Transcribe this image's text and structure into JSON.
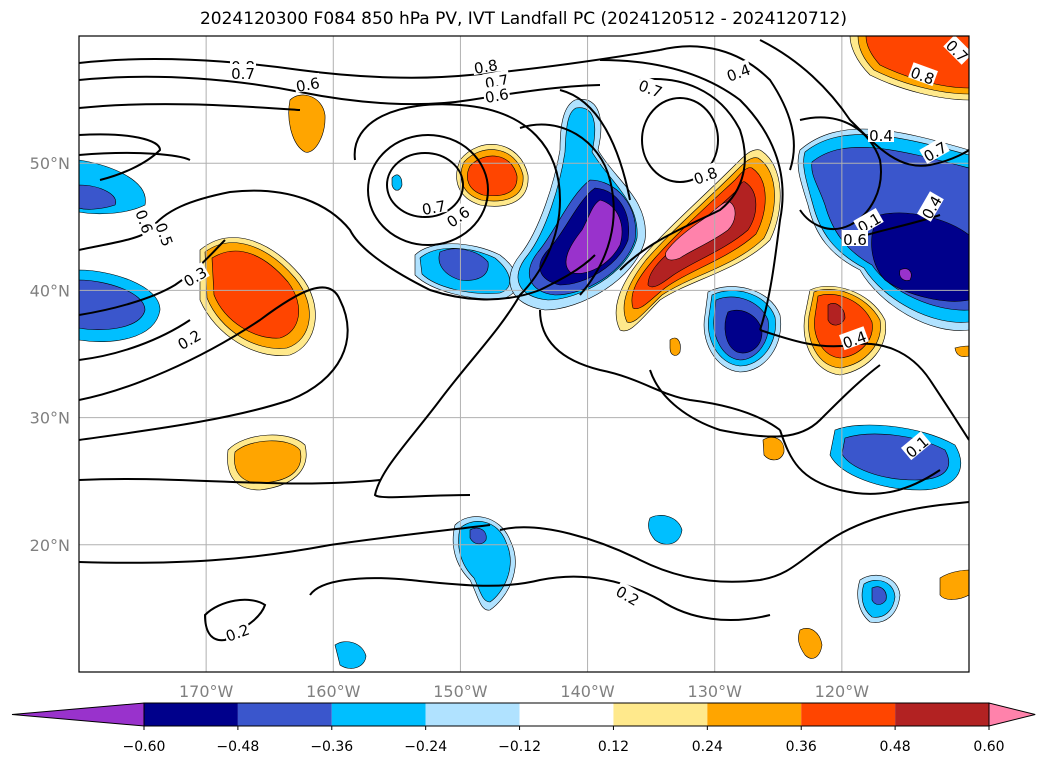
{
  "title": "2024120300 F084 850 hPa PV, IVT Landfall PC (2024120512 - 2024120712)",
  "map": {
    "lon_range": [
      -180,
      -110
    ],
    "lat_range": [
      10,
      60
    ],
    "lon_ticks": [
      {
        "value": -170,
        "label": "170°W"
      },
      {
        "value": -160,
        "label": "160°W"
      },
      {
        "value": -150,
        "label": "150°W"
      },
      {
        "value": -140,
        "label": "140°W"
      },
      {
        "value": -130,
        "label": "130°W"
      },
      {
        "value": -120,
        "label": "120°W"
      }
    ],
    "lat_ticks": [
      {
        "value": 20,
        "label": "20°N"
      },
      {
        "value": 30,
        "label": "30°N"
      },
      {
        "value": 40,
        "label": "40°N"
      },
      {
        "value": 50,
        "label": "50°N"
      }
    ],
    "grid": true
  },
  "colorbar": {
    "orientation": "horizontal",
    "extend": "both",
    "levels": [
      -0.6,
      -0.48,
      -0.36,
      -0.24,
      -0.12,
      0.12,
      0.24,
      0.36,
      0.48,
      0.6
    ],
    "tick_labels": [
      "−0.60",
      "−0.48",
      "−0.36",
      "−0.24",
      "−0.12",
      "0.12",
      "0.24",
      "0.36",
      "0.48",
      "0.60"
    ],
    "colors": [
      "#9932cc",
      "#00008b",
      "#3a56cc",
      "#00bfff",
      "#b0e2ff",
      "#ffffff",
      "#ffe98c",
      "#ffa500",
      "#ff4500",
      "#b22222",
      "#ff82ab"
    ]
  },
  "contour_labels": [
    "0.8",
    "0.7",
    "0.6",
    "0.8",
    "0.7",
    "0.6",
    "0.4",
    "0.7",
    "0.7",
    "0.6",
    "0.8",
    "0.8",
    "0.4",
    "0.7",
    "0.6",
    "0.5",
    "0.3",
    "0.2",
    "0.1",
    "0.6",
    "0.4",
    "0.4",
    "0.1",
    "0.2",
    "0.2",
    "0.7"
  ]
}
